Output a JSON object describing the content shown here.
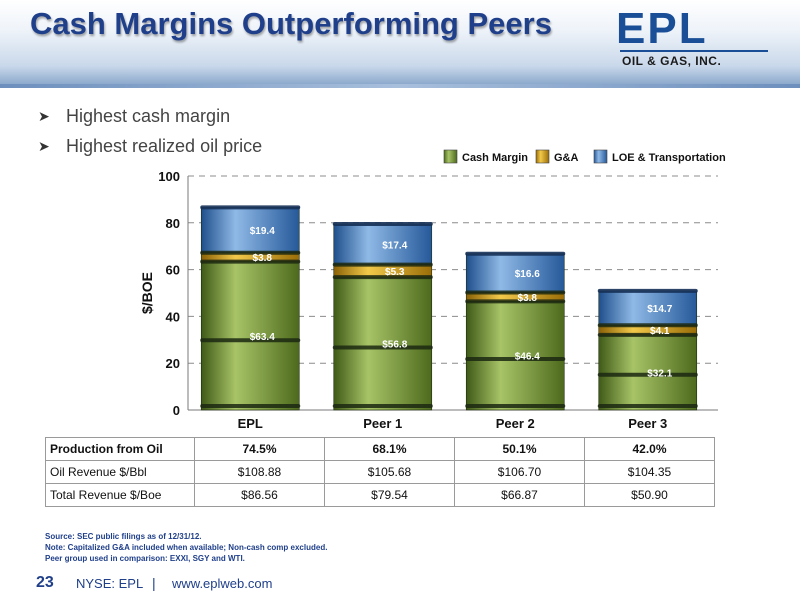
{
  "slide": {
    "title": "Cash Margins Outperforming Peers",
    "logo": {
      "word": "EPL",
      "sub": "OIL & GAS, INC."
    },
    "bullets": [
      "Highest cash margin",
      "Highest realized oil price"
    ]
  },
  "chart_data": {
    "type": "bar",
    "stacked": true,
    "categories": [
      "EPL",
      "Peer 1",
      "Peer 2",
      "Peer 3"
    ],
    "series": [
      {
        "name": "Cash Margin",
        "values": [
          63.4,
          56.8,
          46.4,
          32.1
        ],
        "labels": [
          "$63.4",
          "$56.8",
          "$46.4",
          "$32.1"
        ],
        "color": "#7a9a3c"
      },
      {
        "name": "G&A",
        "values": [
          3.8,
          5.3,
          3.8,
          4.1
        ],
        "labels": [
          "$3.8",
          "$5.3",
          "$3.8",
          "$4.1"
        ],
        "color": "#d9a41a"
      },
      {
        "name": "LOE & Transportation",
        "values": [
          19.4,
          17.4,
          16.6,
          14.7
        ],
        "labels": [
          "$19.4",
          "$17.4",
          "$16.6",
          "$14.7"
        ],
        "color": "#4a84c4"
      }
    ],
    "ylabel": "$/BOE",
    "ylim": [
      0,
      100
    ],
    "yticks": [
      0,
      20,
      40,
      60,
      80,
      100
    ],
    "grid": true,
    "legend_position": "top-right"
  },
  "table": {
    "rows": [
      {
        "label": "Production from Oil",
        "values": [
          "74.5%",
          "68.1%",
          "50.1%",
          "42.0%"
        ]
      },
      {
        "label": "Oil Revenue $/Bbl",
        "values": [
          "$108.88",
          "$105.68",
          "$106.70",
          "$104.35"
        ]
      },
      {
        "label": "Total Revenue $/Boe",
        "values": [
          "$86.56",
          "$79.54",
          "$66.87",
          "$50.90"
        ]
      }
    ]
  },
  "notes": [
    "Source: SEC public filings as of 12/31/12.",
    "Note: Capitalized G&A included when available; Non-cash comp excluded.",
    "Peer group used in comparison: EXXI, SGY and WTI."
  ],
  "footer": {
    "page": "23",
    "ticker": "NYSE: EPL",
    "separator": "|",
    "url": "www.eplweb.com"
  }
}
